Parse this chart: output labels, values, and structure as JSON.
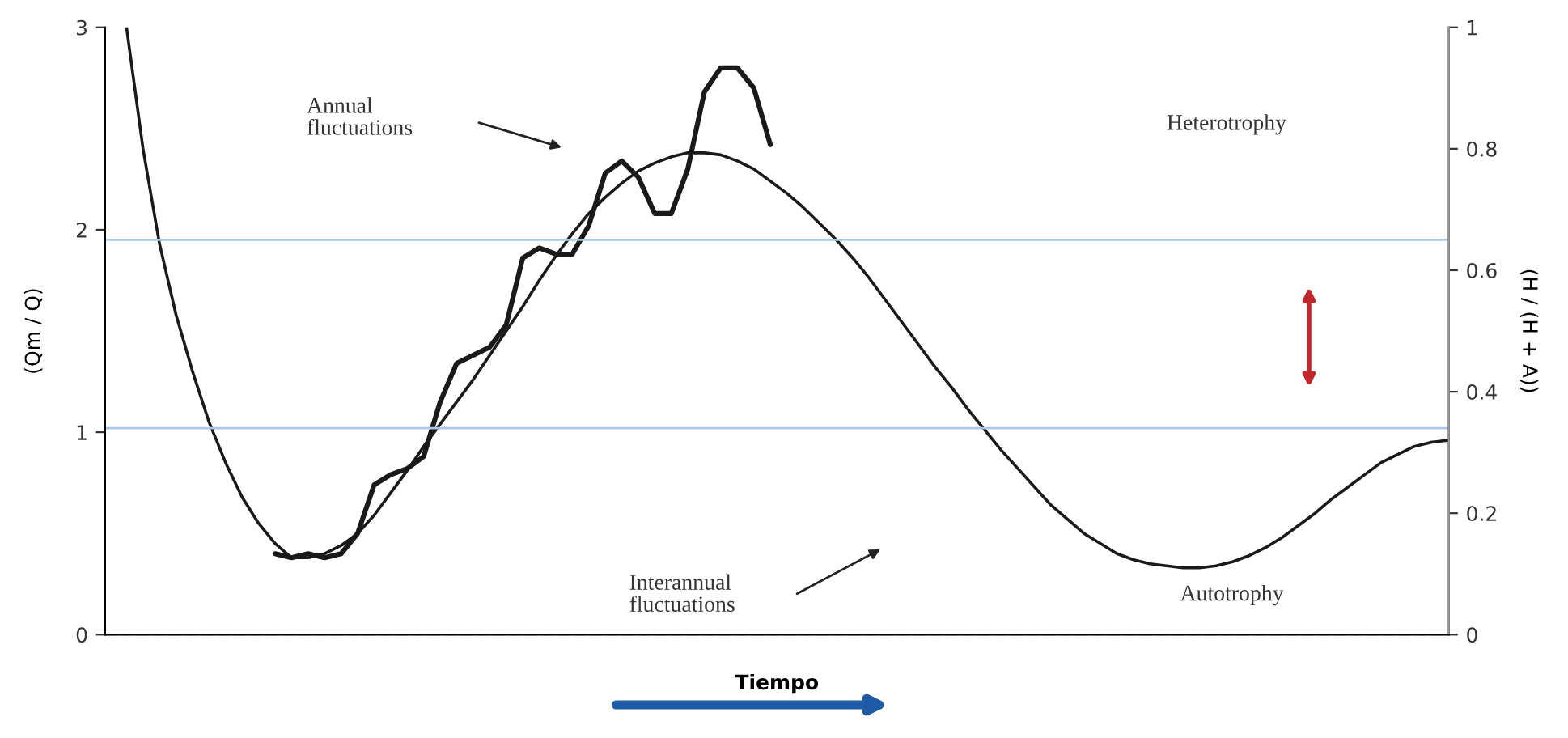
{
  "chart_data": {
    "type": "line",
    "xlabel": "Tiempo",
    "ylabel": "(Qm / Q)",
    "y2label": "(H / (H + A))",
    "categories": [
      null,
      null,
      null,
      null,
      null,
      null,
      null,
      null,
      null,
      null,
      null,
      null,
      null,
      null,
      null,
      null,
      null,
      null,
      null,
      null,
      null,
      null,
      null,
      null,
      null,
      null,
      null,
      null,
      null,
      null,
      null,
      null,
      null,
      null,
      null,
      null,
      null,
      null,
      null,
      null,
      null,
      null,
      null,
      null,
      null,
      null,
      null,
      null,
      null,
      null,
      null,
      null,
      null,
      null,
      null,
      null,
      null,
      null,
      null,
      null,
      null,
      null,
      null,
      null,
      null,
      null,
      null,
      null,
      null,
      null,
      null,
      null,
      null,
      null,
      null,
      null,
      null,
      null,
      null,
      null,
      null
    ],
    "series": [
      {
        "color": "#1a1a1a",
        "values": [
          3.0,
          2.4,
          1.93,
          1.58,
          1.3,
          1.05,
          0.85,
          0.68,
          0.55,
          0.45,
          0.38,
          0.38,
          0.4,
          0.44,
          0.5,
          0.59,
          0.7,
          0.81,
          0.93,
          1.04,
          1.15,
          1.26,
          1.38,
          1.5,
          1.62,
          1.75,
          1.87,
          1.98,
          2.08,
          2.16,
          2.23,
          2.29,
          2.33,
          2.36,
          2.38,
          2.38,
          2.37,
          2.34,
          2.3,
          2.24,
          2.18,
          2.11,
          2.03,
          1.95,
          1.86,
          1.76,
          1.65,
          1.54,
          1.43,
          1.32,
          1.22,
          1.11,
          1.01,
          0.91,
          0.82,
          0.73,
          0.64,
          0.57,
          0.5,
          0.45,
          0.4,
          0.37,
          0.35,
          0.34,
          0.33,
          0.33,
          0.34,
          0.36,
          0.39,
          0.43,
          0.48,
          0.54,
          0.6,
          0.67,
          0.73,
          0.79,
          0.85,
          0.89,
          0.93,
          0.95,
          0.96
        ]
      },
      {
        "color": "#1a1a1a",
        "values": [
          null,
          null,
          null,
          null,
          null,
          null,
          null,
          null,
          null,
          0.4,
          0.38,
          0.4,
          0.38,
          0.4,
          0.5,
          0.74,
          0.79,
          0.82,
          0.88,
          1.15,
          1.34,
          1.38,
          1.42,
          1.53,
          1.86,
          1.91,
          1.88,
          1.88,
          2.02,
          2.28,
          2.34,
          2.26,
          2.08,
          2.08,
          2.3,
          2.68,
          2.8,
          2.8,
          2.7,
          2.42,
          null,
          null,
          null,
          null,
          null,
          null,
          null,
          null,
          null,
          null,
          null,
          null,
          null,
          null,
          null,
          null,
          null,
          null,
          null,
          null,
          null,
          null,
          null,
          null,
          null,
          null,
          null,
          null,
          null,
          null,
          null,
          null,
          null,
          null,
          null,
          null,
          null,
          null,
          null,
          null,
          null
        ]
      }
    ],
    "ylim": [
      0,
      3
    ],
    "yticks": [
      0,
      1,
      2,
      3
    ],
    "y2lim": [
      0,
      1
    ],
    "y2ticks": [
      0,
      0.2,
      0.4,
      0.6,
      0.8,
      1
    ],
    "ref_lines": [
      {
        "axis": "y",
        "value": 1.95,
        "color": "#a9c8ec"
      },
      {
        "axis": "y",
        "value": 1.02,
        "color": "#a9c8ec"
      }
    ],
    "annotations": [
      "Annual\nfluctuations",
      "Interannual\nfluctuations",
      "Heterotrophy",
      "Autotrophy"
    ],
    "grid": false,
    "legend": false,
    "line_style": "solid",
    "marker": "none"
  }
}
